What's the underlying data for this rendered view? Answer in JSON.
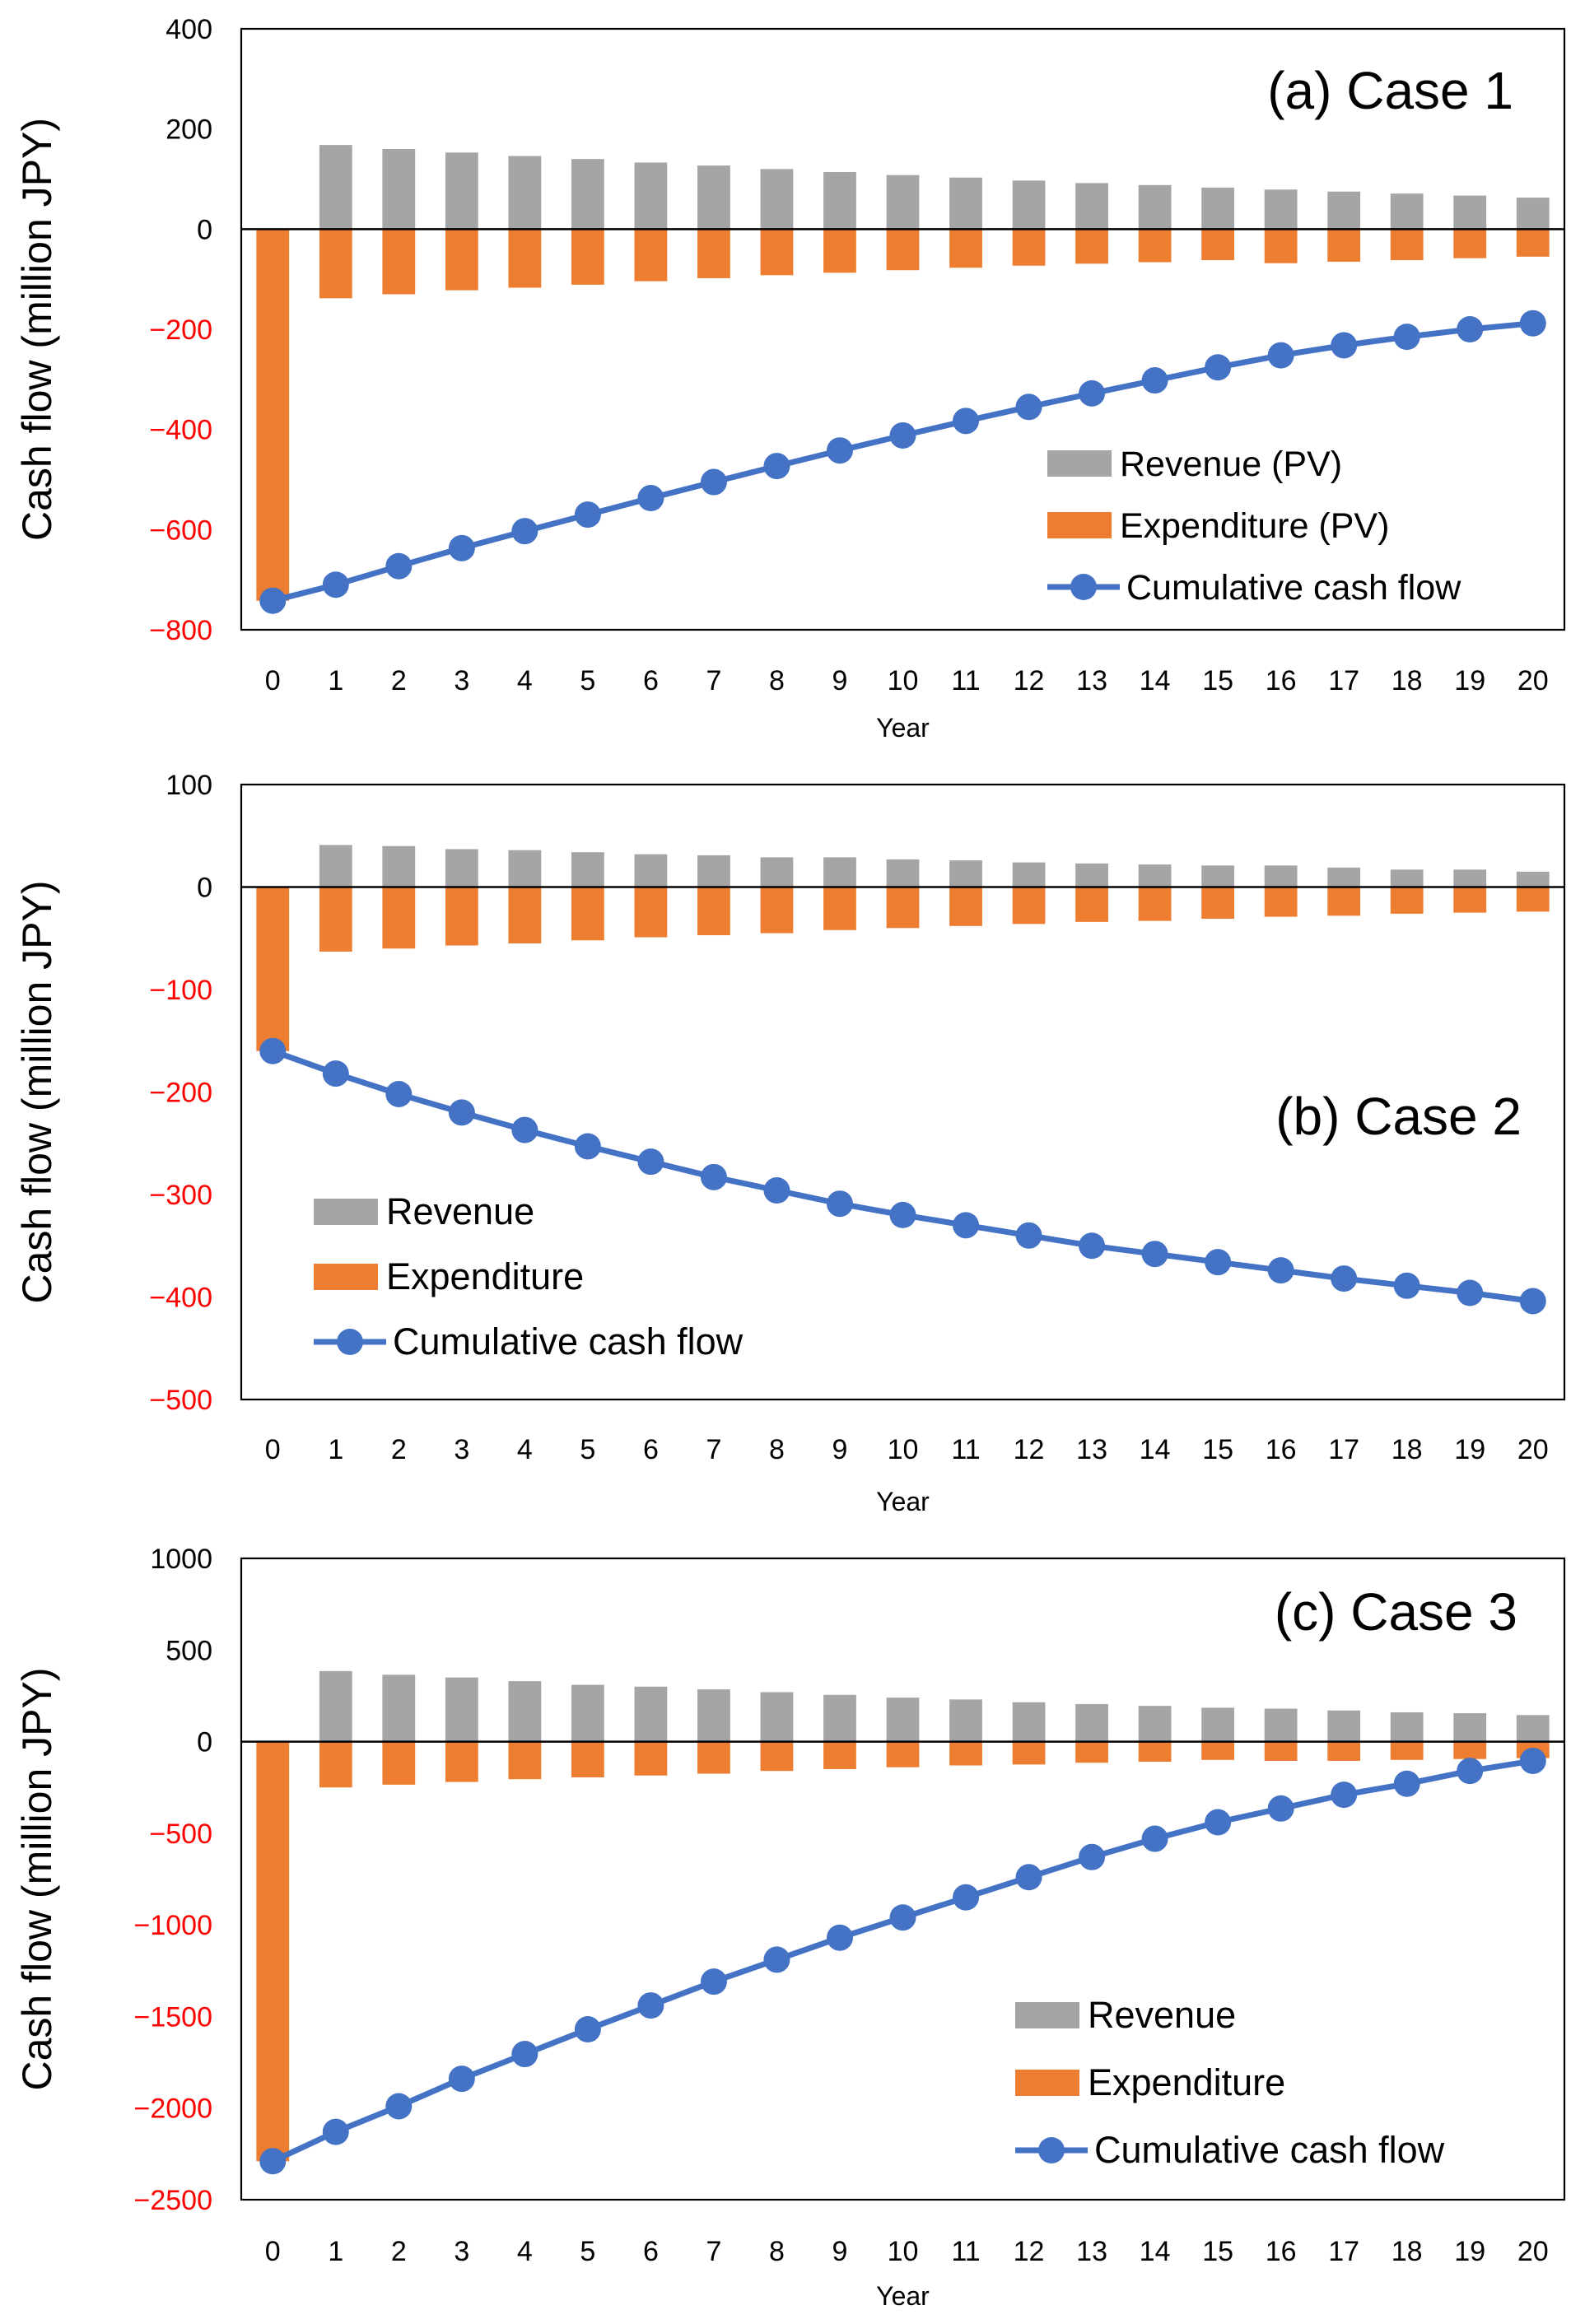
{
  "colors": {
    "revenue": "#A5A5A5",
    "expenditure": "#ED7D31",
    "cumulative": "#4472C4",
    "negative_tick": "#FF0000",
    "positive_tick": "#000000"
  },
  "chart_data": [
    {
      "type": "bar",
      "title": "(a) Case 1",
      "xlabel": "Year",
      "ylabel": "Cash flow (million JPY)",
      "ylim": [
        -800,
        400
      ],
      "yticks": [
        400,
        200,
        0,
        -200,
        -400,
        -600,
        -800
      ],
      "categories": [
        "0",
        "1",
        "2",
        "3",
        "4",
        "5",
        "6",
        "7",
        "8",
        "9",
        "10",
        "11",
        "12",
        "13",
        "14",
        "15",
        "16",
        "17",
        "18",
        "19",
        "20"
      ],
      "legend_position": "bottom-right",
      "series": [
        {
          "name": "Revenue (PV)",
          "type": "bar",
          "values": [
            0,
            168,
            160,
            153,
            146,
            140,
            133,
            127,
            120,
            114,
            108,
            103,
            97,
            92,
            88,
            83,
            79,
            75,
            71,
            67,
            63
          ]
        },
        {
          "name": "Expenditure (PV)",
          "type": "bar",
          "values": [
            -742,
            -138,
            -130,
            -122,
            -117,
            -111,
            -104,
            -98,
            -92,
            -87,
            -82,
            -77,
            -73,
            -69,
            -66,
            -62,
            -68,
            -65,
            -62,
            -58,
            -55
          ]
        },
        {
          "name": "Cumulative cash flow",
          "type": "line",
          "values": [
            -742,
            -710,
            -673,
            -637,
            -603,
            -570,
            -537,
            -505,
            -473,
            -442,
            -412,
            -383,
            -355,
            -328,
            -302,
            -276,
            -252,
            -232,
            -215,
            -200,
            -188
          ]
        }
      ]
    },
    {
      "type": "bar",
      "title": "(b) Case 2",
      "xlabel": "Year",
      "ylabel": "Cash flow (million JPY)",
      "ylim": [
        -500,
        100
      ],
      "yticks": [
        100,
        0,
        -100,
        -200,
        -300,
        -400,
        -500
      ],
      "categories": [
        "0",
        "1",
        "2",
        "3",
        "4",
        "5",
        "6",
        "7",
        "8",
        "9",
        "10",
        "11",
        "12",
        "13",
        "14",
        "15",
        "16",
        "17",
        "18",
        "19",
        "20"
      ],
      "legend_position": "bottom-left",
      "series": [
        {
          "name": "Revenue",
          "type": "bar",
          "values": [
            0,
            41,
            40,
            37,
            36,
            34,
            32,
            31,
            29,
            29,
            27,
            26,
            24,
            23,
            22,
            21,
            21,
            19,
            17,
            17,
            15
          ]
        },
        {
          "name": "Expenditure",
          "type": "bar",
          "values": [
            -160,
            -63,
            -60,
            -57,
            -55,
            -52,
            -49,
            -47,
            -45,
            -42,
            -40,
            -38,
            -36,
            -34,
            -33,
            -31,
            -29,
            -28,
            -26,
            -25,
            -24
          ]
        },
        {
          "name": "Cumulative cash flow",
          "type": "line",
          "values": [
            -160,
            -182,
            -202,
            -220,
            -237,
            -253,
            -268,
            -283,
            -296,
            -309,
            -320,
            -330,
            -340,
            -350,
            -358,
            -366,
            -374,
            -382,
            -389,
            -396,
            -404
          ]
        }
      ]
    },
    {
      "type": "bar",
      "title": "(c) Case 3",
      "xlabel": "Year",
      "ylabel": "Cash flow (million JPY)",
      "ylim": [
        -2500,
        1000
      ],
      "yticks": [
        1000,
        500,
        0,
        -500,
        -1000,
        -1500,
        -2000,
        -2500
      ],
      "categories": [
        "0",
        "1",
        "2",
        "3",
        "4",
        "5",
        "6",
        "7",
        "8",
        "9",
        "10",
        "11",
        "12",
        "13",
        "14",
        "15",
        "16",
        "17",
        "18",
        "19",
        "20"
      ],
      "legend_position": "bottom-right",
      "series": [
        {
          "name": "Revenue",
          "type": "bar",
          "values": [
            0,
            385,
            365,
            350,
            330,
            310,
            300,
            285,
            270,
            255,
            240,
            230,
            215,
            205,
            195,
            185,
            180,
            170,
            160,
            155,
            145
          ]
        },
        {
          "name": "Expenditure",
          "type": "bar",
          "values": [
            -2290,
            -250,
            -235,
            -220,
            -205,
            -195,
            -185,
            -175,
            -160,
            -150,
            -140,
            -130,
            -125,
            -115,
            -110,
            -100,
            -105,
            -105,
            -100,
            -95,
            -90
          ]
        },
        {
          "name": "Cumulative cash flow",
          "type": "line",
          "values": [
            -2290,
            -2130,
            -1990,
            -1840,
            -1705,
            -1570,
            -1440,
            -1310,
            -1190,
            -1070,
            -960,
            -850,
            -740,
            -630,
            -530,
            -440,
            -365,
            -290,
            -230,
            -160,
            -105
          ]
        }
      ]
    }
  ]
}
